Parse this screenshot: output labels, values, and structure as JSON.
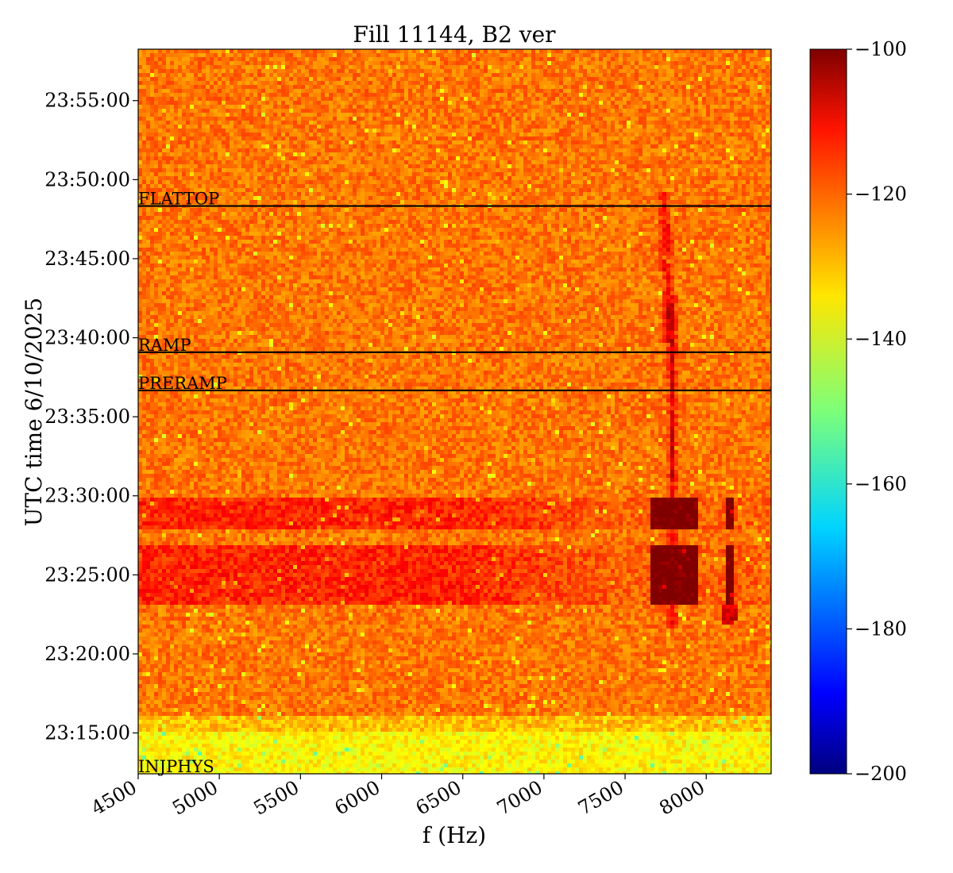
{
  "chart_data": {
    "type": "heatmap",
    "title": "Fill 11144, B2 ver",
    "xlabel": "f (Hz)",
    "ylabel": "UTC time 6/10/2025",
    "xlim": [
      4500,
      8400
    ],
    "ylim": [
      "23:12:25",
      "23:58:15"
    ],
    "x_ticks": [
      4500,
      5000,
      5500,
      6000,
      6500,
      7000,
      7500,
      8000
    ],
    "x_tick_labels": [
      "4500",
      "5000",
      "5500",
      "6000",
      "6500",
      "7000",
      "7500",
      "8000"
    ],
    "y_tick_labels": [
      "23:15:00",
      "23:20:00",
      "23:25:00",
      "23:30:00",
      "23:35:00",
      "23:40:00",
      "23:45:00",
      "23:50:00",
      "23:55:00"
    ],
    "events": [
      {
        "label": "FLATTOP",
        "time": "23:48:20"
      },
      {
        "label": "RAMP",
        "time": "23:39:05"
      },
      {
        "label": "PRERAMP",
        "time": "23:36:40"
      },
      {
        "label": "INJPHYS",
        "time": "23:12:25"
      }
    ],
    "colorbar": {
      "min": -200,
      "max": -100,
      "ticks": [
        -100,
        -120,
        -140,
        -160,
        -180,
        -200
      ],
      "tick_labels": [
        "−100",
        "−120",
        "−140",
        "−160",
        "−180",
        "−200"
      ],
      "colormap": "jet"
    },
    "features": {
      "background_level": -124,
      "low_band_level": -137,
      "low_band_time_range": [
        "23:12:25",
        "23:15:10"
      ],
      "high_noise_bands": [
        {
          "time_range": [
            "23:27:55",
            "23:30:00"
          ],
          "level": -116
        },
        {
          "time_range": [
            "23:23:05",
            "23:26:45"
          ],
          "level": -116
        }
      ],
      "peak_region": {
        "f_range": [
          7650,
          7950
        ],
        "level": -101
      },
      "resonance_line_hz": 7790,
      "secondary_line_hz": 8150
    },
    "grid": false,
    "legend": "none"
  }
}
